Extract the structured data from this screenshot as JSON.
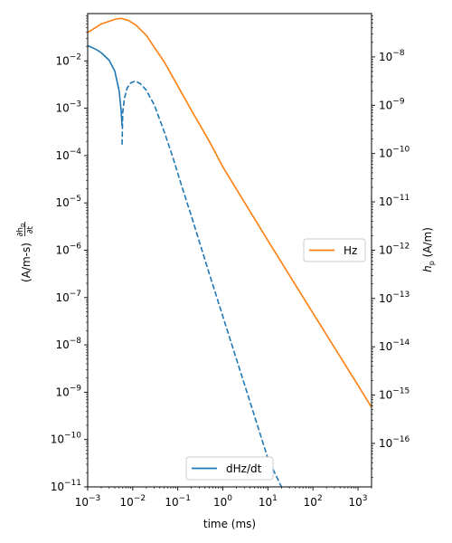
{
  "chart_data": {
    "type": "line",
    "xlabel": "time (ms)",
    "x_scale": "log",
    "xlim": [
      0.001,
      2000
    ],
    "x_ticks": [
      {
        "value": 0.001,
        "base": "10",
        "exp": "−3"
      },
      {
        "value": 0.01,
        "base": "10",
        "exp": "−2"
      },
      {
        "value": 0.1,
        "base": "10",
        "exp": "−1"
      },
      {
        "value": 1,
        "base": "10",
        "exp": "0"
      },
      {
        "value": 10,
        "base": "10",
        "exp": "1"
      },
      {
        "value": 100,
        "base": "10",
        "exp": "2"
      },
      {
        "value": 1000,
        "base": "10",
        "exp": "3"
      }
    ],
    "left_axis": {
      "label_frac": "∂h",
      "label_frac_sub": "p",
      "label_frac_den": "∂t",
      "label_units": "(A/m-s)",
      "scale": "log",
      "ylim": [
        1e-11,
        0.1
      ],
      "ticks": [
        {
          "value": 0.01,
          "base": "10",
          "exp": "−2"
        },
        {
          "value": 0.001,
          "base": "10",
          "exp": "−3"
        },
        {
          "value": 0.0001,
          "base": "10",
          "exp": "−4"
        },
        {
          "value": 1e-05,
          "base": "10",
          "exp": "−5"
        },
        {
          "value": 1e-06,
          "base": "10",
          "exp": "−6"
        },
        {
          "value": 1e-07,
          "base": "10",
          "exp": "−7"
        },
        {
          "value": 1e-08,
          "base": "10",
          "exp": "−8"
        },
        {
          "value": 1e-09,
          "base": "10",
          "exp": "−9"
        },
        {
          "value": 1e-10,
          "base": "10",
          "exp": "−10"
        },
        {
          "value": 1e-11,
          "base": "10",
          "exp": "−11"
        }
      ]
    },
    "right_axis": {
      "label_main": "h",
      "label_sub": "p",
      "label_units": "(A/m)",
      "scale": "log",
      "ylim": [
        1.26e-17,
        7.9e-08
      ],
      "ticks": [
        {
          "value": 1e-08,
          "base": "10",
          "exp": "−8"
        },
        {
          "value": 1e-09,
          "base": "10",
          "exp": "−9"
        },
        {
          "value": 1e-10,
          "base": "10",
          "exp": "−10"
        },
        {
          "value": 1e-11,
          "base": "10",
          "exp": "−11"
        },
        {
          "value": 1e-12,
          "base": "10",
          "exp": "−12"
        },
        {
          "value": 1e-13,
          "base": "10",
          "exp": "−13"
        },
        {
          "value": 1e-14,
          "base": "10",
          "exp": "−14"
        },
        {
          "value": 1e-15,
          "base": "10",
          "exp": "−15"
        },
        {
          "value": 1e-16,
          "base": "10",
          "exp": "−16"
        }
      ]
    },
    "series": [
      {
        "name": "dHz/dt",
        "axis": "left",
        "color": "#1f77b4",
        "segments": [
          {
            "style": "solid",
            "points": [
              [
                0.001,
                0.0211
              ],
              [
                0.0015,
                0.0177
              ],
              [
                0.002,
                0.0149
              ],
              [
                0.003,
                0.0103
              ],
              [
                0.004,
                0.0061
              ],
              [
                0.005,
                0.0023
              ],
              [
                0.0055,
                0.00095
              ],
              [
                0.0058,
                0.00042
              ]
            ]
          },
          {
            "style": "dashed",
            "points": [
              [
                0.0058,
                0.00017
              ],
              [
                0.006,
                0.00082
              ],
              [
                0.0065,
                0.00158
              ],
              [
                0.0075,
                0.00266
              ],
              [
                0.009,
                0.00342
              ],
              [
                0.0115,
                0.00375
              ],
              [
                0.015,
                0.00326
              ],
              [
                0.02,
                0.0024
              ],
              [
                0.03,
                0.00118
              ],
              [
                0.05,
                0.00032
              ],
              [
                0.08,
                8.4e-05
              ],
              [
                0.12,
                2.4e-05
              ],
              [
                0.2,
                5.3e-06
              ],
              [
                0.5,
                3.2e-07
              ],
              [
                1,
                4e-08
              ],
              [
                3,
                1.5e-09
              ],
              [
                10,
                4e-11
              ],
              [
                20,
                1e-11
              ]
            ]
          }
        ]
      },
      {
        "name": "Hz",
        "axis": "right",
        "color": "#ff7f0e",
        "segments": [
          {
            "style": "solid",
            "points": [
              [
                0.001,
                3.2e-08
              ],
              [
                0.002,
                4.8e-08
              ],
              [
                0.004,
                6e-08
              ],
              [
                0.0055,
                6.3e-08
              ],
              [
                0.008,
                5.7e-08
              ],
              [
                0.012,
                4.5e-08
              ],
              [
                0.02,
                2.8e-08
              ],
              [
                0.03,
                1.6e-08
              ],
              [
                0.05,
                7.9e-09
              ],
              [
                0.1,
                2.5e-09
              ],
              [
                0.2,
                7.9e-10
              ],
              [
                0.5,
                1.8e-10
              ],
              [
                1,
                5.3e-11
              ],
              [
                10,
                1.58e-12
              ],
              [
                100,
                5e-14
              ],
              [
                1000,
                1.6e-15
              ],
              [
                2000,
                5.6e-16
              ]
            ]
          }
        ]
      }
    ],
    "legends": [
      {
        "label": "dHz/dt",
        "color": "#1f77b4",
        "placement": "lower-center"
      },
      {
        "label": "Hz",
        "color": "#ff7f0e",
        "placement": "center-right"
      }
    ]
  }
}
